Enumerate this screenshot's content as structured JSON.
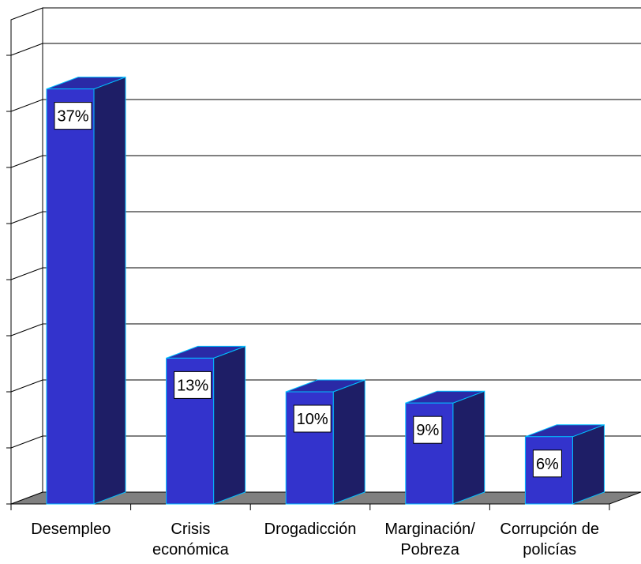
{
  "chart_data": {
    "type": "bar",
    "title": "",
    "xlabel": "",
    "ylabel": "",
    "categories": [
      [
        "Desempleo"
      ],
      [
        "Crisis",
        "económica"
      ],
      [
        "Drogadicción"
      ],
      [
        "Marginación/",
        "Pobreza"
      ],
      [
        "Corrupción de",
        "policías"
      ]
    ],
    "values": [
      37,
      13,
      10,
      9,
      6
    ],
    "value_labels": [
      "37%",
      "13%",
      "10%",
      "9%",
      "6%"
    ],
    "ylim": [
      0,
      40
    ],
    "grid": true,
    "legend": "none",
    "colors": {
      "bar_front": "#3333CC",
      "bar_side": "#1E1E66",
      "bar_top": "#2A2AA6",
      "bar_edge": "#00BFFF",
      "floor": "#808080",
      "axis": "#000000",
      "grid": "#000000",
      "label_box": "#FFFFFF"
    }
  }
}
